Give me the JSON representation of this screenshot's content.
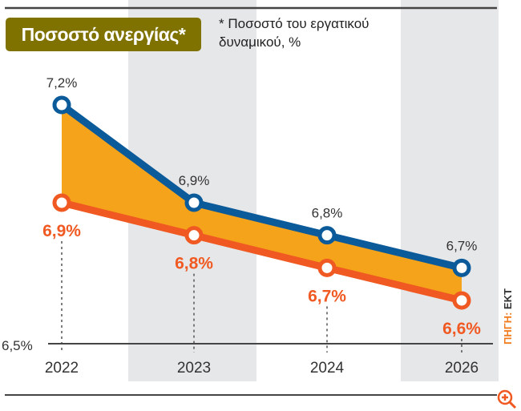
{
  "chart_data": {
    "type": "line",
    "title": "Ποσοστό ανεργίας*",
    "subtitle": "* Ποσοστό του εργατικού δυναμικού, %",
    "categories": [
      "2022",
      "2023",
      "2024",
      "2026"
    ],
    "series": [
      {
        "values": [
          7.2,
          6.9,
          6.8,
          6.7
        ],
        "labels": [
          "7,2%",
          "6,9%",
          "6,8%",
          "6,7%"
        ],
        "color": "#0b5a9a"
      },
      {
        "values": [
          6.9,
          6.8,
          6.7,
          6.6
        ],
        "labels": [
          "6,9%",
          "6,8%",
          "6,7%",
          "6,6%"
        ],
        "color": "#f05a22"
      }
    ],
    "fill_between_color": "#f5a31a",
    "y_baseline_label": "6,5%",
    "ylim": [
      6.5,
      7.2
    ],
    "band_color": "#e6e7e9",
    "source_prefix": "ΠΗΓΗ:",
    "source_name": "ΕΚΤ"
  },
  "zoom_icon": "zoom-in-icon"
}
